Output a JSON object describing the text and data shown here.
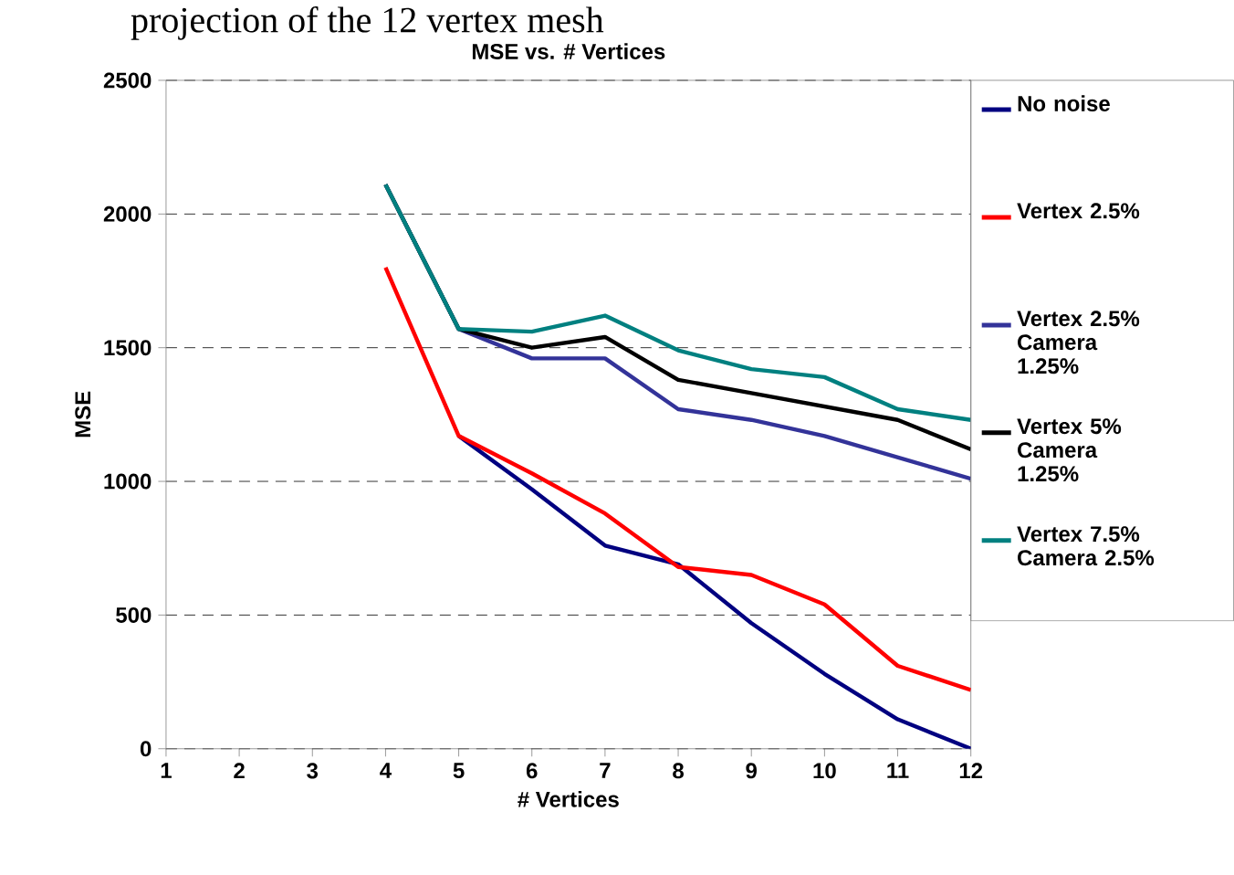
{
  "chart_data": {
    "type": "line",
    "title": "MSE vs. # Vertices",
    "xlabel": "# Vertices",
    "ylabel": "MSE",
    "annotations": [
      "projection of the 12 vertex mesh"
    ],
    "categories": [
      "1",
      "2",
      "3",
      "4",
      "5",
      "6",
      "7",
      "8",
      "9",
      "10",
      "11",
      "12"
    ],
    "series": [
      {
        "name": "No noise",
        "color": "#000080",
        "values": [
          null,
          null,
          null,
          null,
          1170,
          970,
          760,
          690,
          470,
          280,
          110,
          0
        ]
      },
      {
        "name": "Vertex 2.5%",
        "color": "#ff0000",
        "values": [
          null,
          null,
          null,
          1800,
          1170,
          1030,
          880,
          680,
          650,
          540,
          310,
          220
        ]
      },
      {
        "name": "Vertex 2.5% Camera 1.25%",
        "color": "#333399",
        "values": [
          null,
          null,
          null,
          2110,
          1570,
          1460,
          1460,
          1270,
          1230,
          1170,
          1090,
          1010
        ]
      },
      {
        "name": "Vertex 5% Camera 1.25%",
        "color": "#000000",
        "values": [
          null,
          null,
          null,
          2110,
          1570,
          1500,
          1540,
          1380,
          1330,
          1280,
          1230,
          1120
        ]
      },
      {
        "name": "Vertex 7.5% Camera 2.5%",
        "color": "#008080",
        "values": [
          null,
          null,
          null,
          2110,
          1570,
          1560,
          1620,
          1490,
          1420,
          1390,
          1270,
          1230
        ]
      }
    ],
    "ylim": [
      0,
      2500
    ],
    "yticks": [
      0,
      500,
      1000,
      1500,
      2000,
      2500
    ],
    "grid": "y",
    "legend": "right",
    "marker": "none",
    "line_style": "solid"
  }
}
